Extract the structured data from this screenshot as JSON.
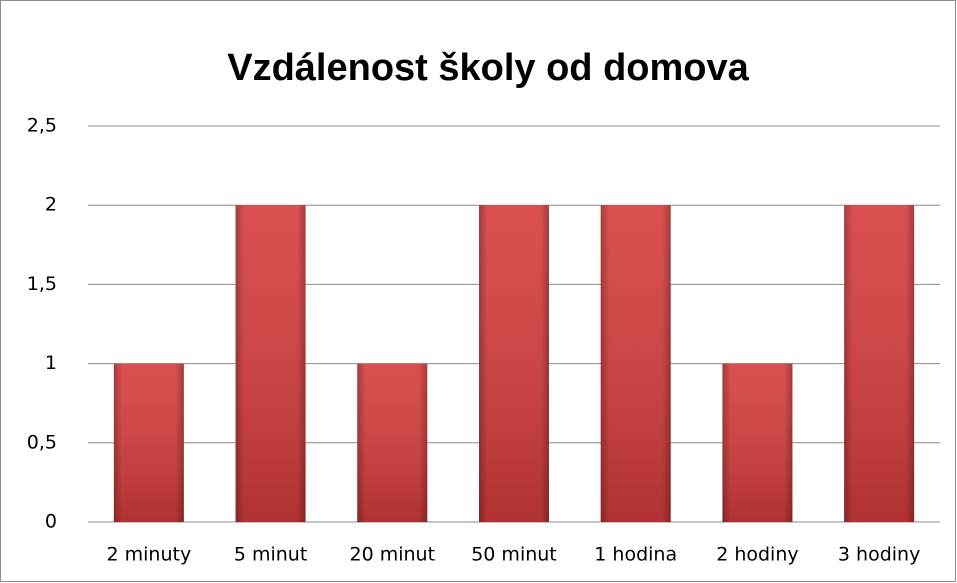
{
  "chart_data": {
    "type": "bar",
    "title": "Vzdálenost školy od domova",
    "categories": [
      "2 minuty",
      "5 minut",
      "20 minut",
      "50 minut",
      "1 hodina",
      "2 hodiny",
      "3 hodiny"
    ],
    "values": [
      1,
      2,
      1,
      2,
      2,
      1,
      2
    ],
    "color": "#d63c3c",
    "ylim": [
      0,
      2.5
    ],
    "yticks": [
      0,
      {
        "value": 0.5,
        "label": "0,5"
      },
      1,
      {
        "value": 1.5,
        "label": "1,5"
      },
      2,
      {
        "value": 2.5,
        "label": "2,5"
      }
    ],
    "grid": true
  }
}
